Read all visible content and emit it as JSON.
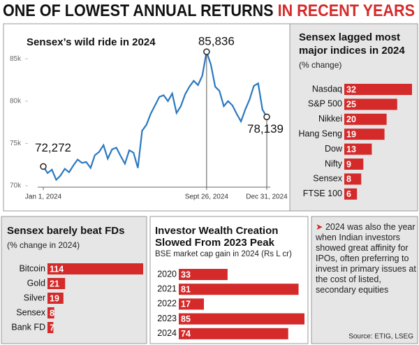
{
  "headline": {
    "dark": "ONE OF LOWEST ANNUAL RETURNS",
    "red": "IN RECENT YEARS"
  },
  "chart_data": [
    {
      "type": "line",
      "title": "Sensex’s wild ride in 2024",
      "color": "#2a78c0",
      "categories": [
        "Jan 1, 2024",
        null,
        null,
        null,
        null,
        null,
        null,
        null,
        null,
        null,
        null,
        null,
        null,
        null,
        null,
        null,
        null,
        null,
        null,
        null,
        null,
        null,
        null,
        null,
        null,
        null,
        null,
        null,
        null,
        null,
        null,
        null,
        null,
        null,
        null,
        null,
        null,
        null,
        "Sept 26, 2024",
        null,
        null,
        null,
        null,
        null,
        null,
        null,
        null,
        null,
        null,
        null,
        null,
        null,
        "Dec 31, 2024"
      ],
      "values": [
        72272,
        71500,
        71900,
        70700,
        71200,
        72000,
        71600,
        72400,
        73100,
        72700,
        72800,
        72100,
        73600,
        74000,
        74800,
        73200,
        74300,
        74500,
        73500,
        72600,
        74200,
        73900,
        72100,
        76500,
        77200,
        78500,
        79500,
        80500,
        80700,
        80000,
        80900,
        78600,
        79400,
        80800,
        81700,
        82400,
        81900,
        83000,
        85836,
        84300,
        81700,
        81200,
        79400,
        80000,
        79500,
        78500,
        77600,
        79000,
        80200,
        81800,
        82100,
        79000,
        78139
      ],
      "value_labels": [
        "72,272",
        null,
        null,
        null,
        null,
        null,
        null,
        null,
        null,
        null,
        null,
        null,
        null,
        null,
        null,
        null,
        null,
        null,
        null,
        null,
        null,
        null,
        null,
        null,
        null,
        null,
        null,
        null,
        null,
        null,
        null,
        null,
        null,
        null,
        null,
        null,
        null,
        null,
        "85,836",
        null,
        null,
        null,
        null,
        null,
        null,
        null,
        null,
        null,
        null,
        null,
        null,
        null,
        "78,139"
      ],
      "ylim": [
        69500,
        87000
      ],
      "yticks": [
        {
          "value": 70000,
          "label": "70k"
        },
        {
          "value": 75000,
          "label": "75k"
        },
        {
          "value": 80000,
          "label": "80k"
        },
        {
          "value": 85000,
          "label": "85k"
        }
      ]
    },
    {
      "type": "hbar",
      "title": "Sensex lagged most major indices in 2024",
      "subtitle": "(% change)",
      "color": "#d42a2a",
      "categories": [
        "Nasdaq",
        "S&P 500",
        "Nikkei",
        "Hang Seng",
        "Dow",
        "Nifty",
        "Sensex",
        "FTSE 100"
      ],
      "values": [
        32,
        25,
        20,
        19,
        13,
        9,
        8,
        6
      ]
    },
    {
      "type": "hbar",
      "title": "Sensex barely beat FDs",
      "subtitle": "(% change in 2024)",
      "color": "#d42a2a",
      "categories": [
        "Bitcoin",
        "Gold",
        "Silver",
        "Sensex",
        "Bank FD"
      ],
      "values": [
        114,
        21,
        19,
        8,
        7
      ]
    },
    {
      "type": "hbar",
      "title": "Investor Wealth Creation Slowed From 2023 Peak",
      "subtitle": "BSE market cap gain in 2024 (Rs L cr)",
      "color": "#d42a2a",
      "categories": [
        "2020",
        "2021",
        "2022",
        "2023",
        "2024"
      ],
      "values": [
        33,
        81,
        17,
        85,
        74
      ]
    }
  ],
  "note": "2024 was also the year when Indian investors showed great affinity for IPOs, often preferring to invest in primary issues at the cost of listed, secondary equities",
  "source": "Source: ETIG, LSEG"
}
